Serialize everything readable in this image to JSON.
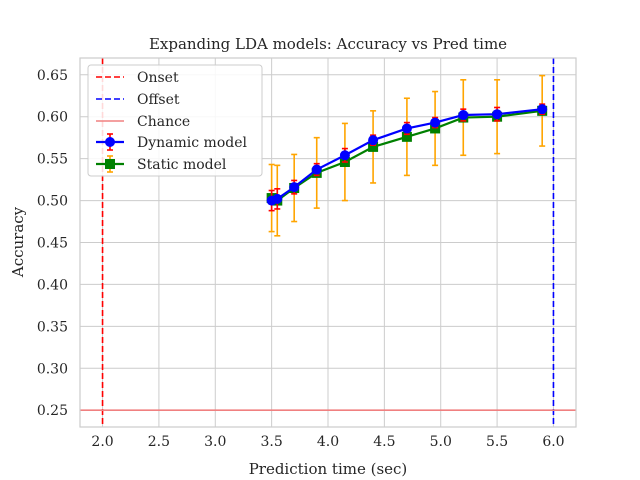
{
  "chart_data": {
    "type": "line",
    "title": "Expanding LDA models: Accuracy vs Pred time",
    "xlabel": "Prediction time (sec)",
    "ylabel": "Accuracy",
    "xlim": [
      1.8,
      6.2
    ],
    "ylim": [
      0.23,
      0.67
    ],
    "xticks": [
      "2.0",
      "2.5",
      "3.0",
      "3.5",
      "4.0",
      "4.5",
      "5.0",
      "5.5",
      "6.0"
    ],
    "yticks": [
      "0.25",
      "0.30",
      "0.35",
      "0.40",
      "0.45",
      "0.50",
      "0.55",
      "0.60",
      "0.65"
    ],
    "grid": true,
    "legend_position": "top-left",
    "reference_lines": [
      {
        "name": "Onset",
        "orientation": "vertical",
        "value": 2.0,
        "color": "#ff0000",
        "style": "dashed"
      },
      {
        "name": "Offset",
        "orientation": "vertical",
        "value": 6.0,
        "color": "#0000ff",
        "style": "dashed"
      },
      {
        "name": "Chance",
        "orientation": "horizontal",
        "value": 0.25,
        "color": "#f08080",
        "style": "solid"
      }
    ],
    "series": [
      {
        "name": "Dynamic model",
        "color": "#0000ff",
        "marker": "circle",
        "error_color": "#ff0000",
        "x": [
          3.5,
          3.55,
          3.7,
          3.9,
          4.15,
          4.4,
          4.7,
          4.95,
          5.2,
          5.5,
          5.9
        ],
        "y": [
          0.5,
          0.502,
          0.516,
          0.537,
          0.554,
          0.572,
          0.586,
          0.593,
          0.602,
          0.603,
          0.609
        ],
        "err": [
          0.012,
          0.012,
          0.008,
          0.007,
          0.008,
          0.006,
          0.007,
          0.006,
          0.007,
          0.008,
          0.006
        ]
      },
      {
        "name": "Static model",
        "color": "#008000",
        "marker": "square",
        "error_color": "#ffa500",
        "x": [
          3.5,
          3.55,
          3.7,
          3.9,
          4.15,
          4.4,
          4.7,
          4.95,
          5.2,
          5.5,
          5.9
        ],
        "y": [
          0.503,
          0.5,
          0.515,
          0.533,
          0.546,
          0.564,
          0.576,
          0.586,
          0.599,
          0.6,
          0.607
        ],
        "err": [
          0.04,
          0.042,
          0.04,
          0.042,
          0.046,
          0.043,
          0.046,
          0.044,
          0.045,
          0.044,
          0.042
        ]
      }
    ]
  }
}
